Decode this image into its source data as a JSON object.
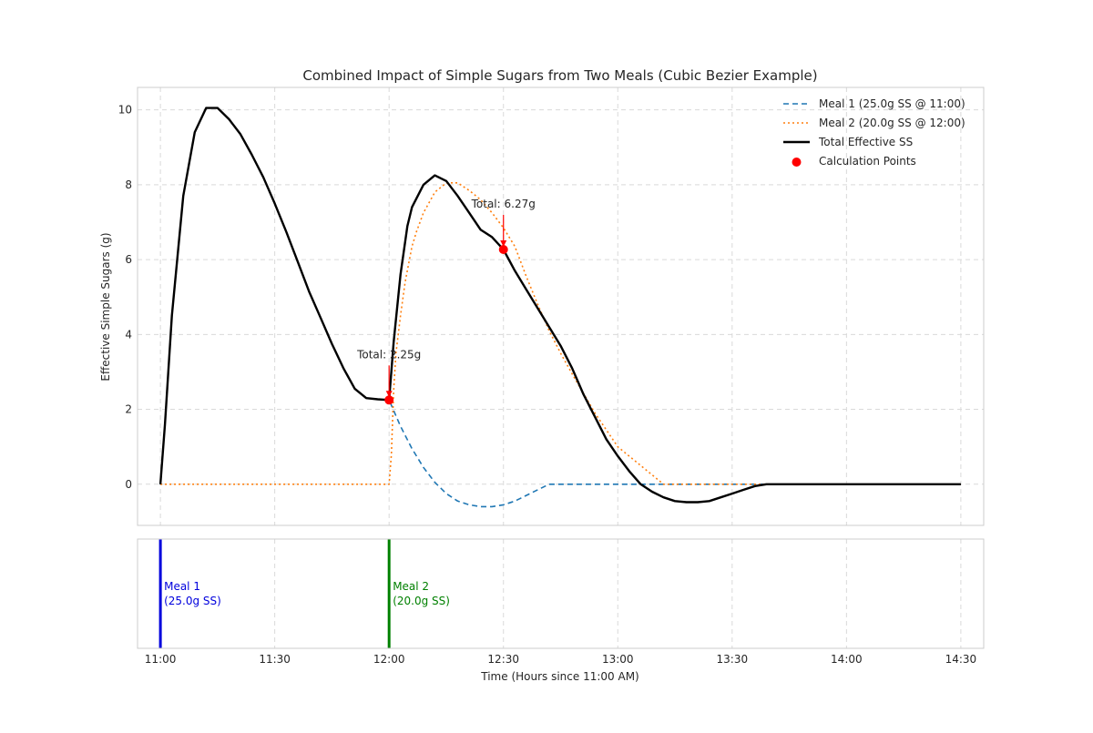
{
  "chart_data": {
    "type": "line",
    "title": "Combined Impact of Simple Sugars from Two Meals (Cubic Bezier Example)",
    "xlabel": "Time (Hours since 11:00 AM)",
    "ylabel": "Effective Simple Sugars (g)",
    "x_unit": "hours since 11:00",
    "xlim": [
      -0.1,
      3.6
    ],
    "ylim": [
      -1.1,
      10.6
    ],
    "x_ticks": [
      {
        "x": 0.0,
        "label": "11:00"
      },
      {
        "x": 0.5,
        "label": "11:30"
      },
      {
        "x": 1.0,
        "label": "12:00"
      },
      {
        "x": 1.5,
        "label": "12:30"
      },
      {
        "x": 2.0,
        "label": "13:00"
      },
      {
        "x": 2.5,
        "label": "13:30"
      },
      {
        "x": 3.0,
        "label": "14:00"
      },
      {
        "x": 3.5,
        "label": "14:30"
      }
    ],
    "y_ticks": [
      0,
      2,
      4,
      6,
      8,
      10
    ],
    "grid": true,
    "legend_position": "top-right",
    "series": [
      {
        "name": "Meal 1 (25.0g SS @ 11:00)",
        "color": "#1f77b4",
        "style": "dashed",
        "x": [
          0,
          0.02,
          0.05,
          0.1,
          0.15,
          0.2,
          0.25,
          0.3,
          0.35,
          0.4,
          0.45,
          0.5,
          0.55,
          0.6,
          0.65,
          0.7,
          0.75,
          0.8,
          0.85,
          0.9,
          0.95,
          1.0,
          1.05,
          1.1,
          1.15,
          1.2,
          1.25,
          1.3,
          1.35,
          1.4,
          1.45,
          1.5,
          1.55,
          1.6,
          1.65,
          1.7,
          1.75,
          1.8,
          2.0,
          2.5,
          3.0,
          3.5
        ],
        "y": [
          0,
          1.6,
          4.5,
          7.7,
          9.4,
          10.05,
          10.05,
          9.75,
          9.35,
          8.8,
          8.2,
          7.5,
          6.75,
          5.95,
          5.15,
          4.45,
          3.75,
          3.1,
          2.55,
          2.3,
          2.27,
          2.25,
          1.55,
          0.95,
          0.45,
          0.05,
          -0.25,
          -0.45,
          -0.55,
          -0.6,
          -0.6,
          -0.55,
          -0.45,
          -0.3,
          -0.15,
          0.0,
          0.0,
          0.0,
          0.0,
          0.0,
          0.0,
          0.0
        ]
      },
      {
        "name": "Meal 2 (20.0g SS @ 12:00)",
        "color": "#ff7f0e",
        "style": "dotted",
        "x": [
          0,
          0.5,
          1.0,
          1.01,
          1.02,
          1.03,
          1.05,
          1.07,
          1.1,
          1.12,
          1.15,
          1.2,
          1.25,
          1.3,
          1.35,
          1.4,
          1.45,
          1.5,
          1.55,
          1.6,
          1.65,
          1.7,
          1.75,
          1.8,
          1.9,
          2.0,
          2.2,
          2.5,
          3.0,
          3.5
        ],
        "y": [
          0,
          0,
          0,
          0.8,
          2.5,
          3.5,
          4.5,
          5.4,
          6.35,
          6.75,
          7.25,
          7.8,
          8.05,
          8.05,
          7.85,
          7.6,
          7.25,
          6.85,
          6.35,
          5.55,
          4.8,
          4.1,
          3.5,
          2.95,
          1.9,
          1.0,
          0.0,
          0.0,
          0.0,
          0.0
        ]
      },
      {
        "name": "Total Effective SS",
        "color": "#000000",
        "style": "solid",
        "x": [
          0,
          0.02,
          0.05,
          0.1,
          0.15,
          0.2,
          0.25,
          0.3,
          0.35,
          0.4,
          0.45,
          0.5,
          0.55,
          0.6,
          0.65,
          0.7,
          0.75,
          0.8,
          0.85,
          0.9,
          0.95,
          1.0,
          1.02,
          1.05,
          1.08,
          1.1,
          1.15,
          1.2,
          1.25,
          1.3,
          1.35,
          1.4,
          1.45,
          1.5,
          1.55,
          1.6,
          1.65,
          1.7,
          1.75,
          1.8,
          1.85,
          1.9,
          1.95,
          2.0,
          2.05,
          2.1,
          2.15,
          2.2,
          2.25,
          2.3,
          2.35,
          2.4,
          2.45,
          2.5,
          2.55,
          2.6,
          2.65,
          2.7,
          2.75,
          2.8,
          3.0,
          3.5
        ],
        "y": [
          0,
          1.6,
          4.5,
          7.7,
          9.4,
          10.05,
          10.05,
          9.75,
          9.35,
          8.8,
          8.2,
          7.5,
          6.75,
          5.95,
          5.15,
          4.45,
          3.75,
          3.1,
          2.55,
          2.3,
          2.27,
          2.25,
          3.8,
          5.6,
          6.9,
          7.4,
          8.0,
          8.25,
          8.1,
          7.7,
          7.25,
          6.8,
          6.6,
          6.27,
          5.7,
          5.2,
          4.7,
          4.2,
          3.7,
          3.1,
          2.4,
          1.8,
          1.2,
          0.75,
          0.35,
          0.0,
          -0.2,
          -0.35,
          -0.45,
          -0.48,
          -0.48,
          -0.45,
          -0.35,
          -0.25,
          -0.15,
          -0.05,
          0.0,
          0.0,
          0.0,
          0.0,
          0.0,
          0.0
        ]
      }
    ],
    "calculation_points": {
      "name": "Calculation Points",
      "color": "#ff0000",
      "points": [
        {
          "x": 1.0,
          "y": 2.25,
          "label": "Total: 2.25g"
        },
        {
          "x": 1.5,
          "y": 6.27,
          "label": "Total: 6.27g"
        }
      ]
    },
    "meal_markers": [
      {
        "x": 0.0,
        "color": "#0000dd",
        "line1": "Meal 1",
        "line2": "(25.0g SS)"
      },
      {
        "x": 1.0,
        "color": "#008000",
        "line1": "Meal 2",
        "line2": "(20.0g SS)"
      }
    ]
  }
}
